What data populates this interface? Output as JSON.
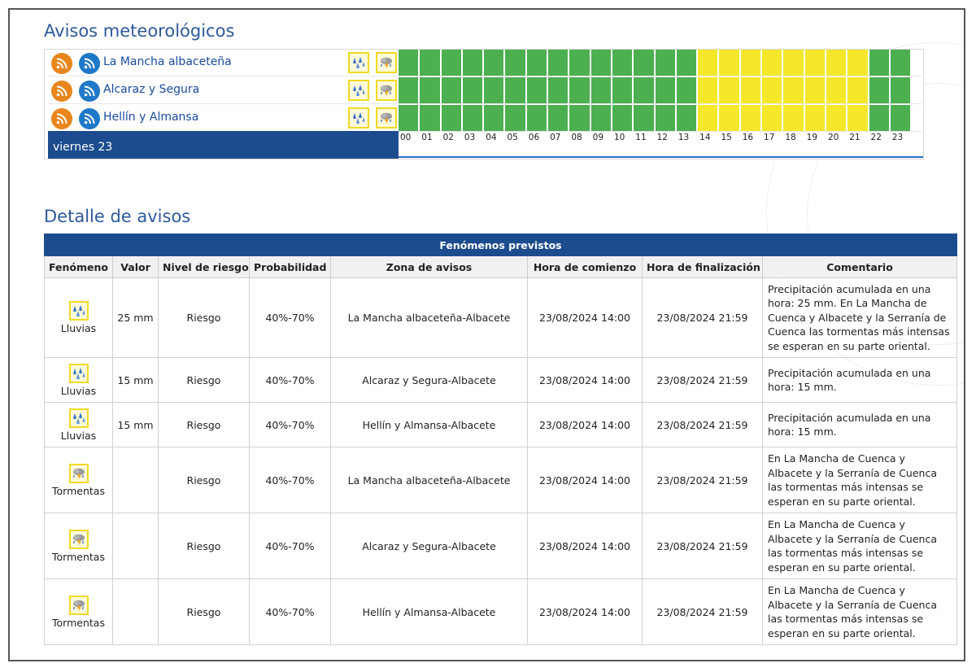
{
  "colors": {
    "green": "#4caf50",
    "yellow": "#f5e82a",
    "dark_blue": "#1d4c8e",
    "title_blue": "#2e5a9c",
    "rss_orange": "#e8861c",
    "rss_blue": "#1f78c8"
  },
  "warnings": {
    "title": "Avisos meteorológicos",
    "day_label": "viernes 23",
    "hour_labels": [
      "00",
      "01",
      "02",
      "03",
      "04",
      "05",
      "06",
      "07",
      "08",
      "09",
      "10",
      "11",
      "12",
      "13",
      "14",
      "15",
      "16",
      "17",
      "18",
      "19",
      "20",
      "21",
      "22",
      "23"
    ],
    "zones": [
      {
        "name": "La Mancha albaceteña",
        "icons": [
          "rain-icon",
          "storm-icon"
        ],
        "levels": [
          "green",
          "green",
          "green",
          "green",
          "green",
          "green",
          "green",
          "green",
          "green",
          "green",
          "green",
          "green",
          "green",
          "green",
          "yellow",
          "yellow",
          "yellow",
          "yellow",
          "yellow",
          "yellow",
          "yellow",
          "yellow",
          "green",
          "green"
        ]
      },
      {
        "name": "Alcaraz y Segura",
        "icons": [
          "rain-icon",
          "storm-icon"
        ],
        "levels": [
          "green",
          "green",
          "green",
          "green",
          "green",
          "green",
          "green",
          "green",
          "green",
          "green",
          "green",
          "green",
          "green",
          "green",
          "yellow",
          "yellow",
          "yellow",
          "yellow",
          "yellow",
          "yellow",
          "yellow",
          "yellow",
          "green",
          "green"
        ]
      },
      {
        "name": "Hellín y Almansa",
        "icons": [
          "rain-icon",
          "storm-icon"
        ],
        "levels": [
          "green",
          "green",
          "green",
          "green",
          "green",
          "green",
          "green",
          "green",
          "green",
          "green",
          "green",
          "green",
          "green",
          "green",
          "yellow",
          "yellow",
          "yellow",
          "yellow",
          "yellow",
          "yellow",
          "yellow",
          "yellow",
          "green",
          "green"
        ]
      }
    ]
  },
  "detail": {
    "title": "Detalle de avisos",
    "banner": "Fenómenos previstos",
    "headers": [
      "Fenómeno",
      "Valor",
      "Nivel de riesgo",
      "Probabilidad",
      "Zona de avisos",
      "Hora de comienzo",
      "Hora de finalización",
      "Comentario"
    ],
    "rows": [
      {
        "icon": "rain-icon",
        "phenomenon": "Lluvias",
        "value": "25 mm",
        "risk": "Riesgo",
        "probability": "40%-70%",
        "zone": "La Mancha albaceteña-Albacete",
        "start": "23/08/2024 14:00",
        "end": "23/08/2024 21:59",
        "comment": "Precipitación acumulada en una hora: 25 mm. En La Mancha de Cuenca y Albacete y la Serranía de Cuenca las tormentas más intensas se esperan en su parte oriental."
      },
      {
        "icon": "rain-icon",
        "phenomenon": "Lluvias",
        "value": "15 mm",
        "risk": "Riesgo",
        "probability": "40%-70%",
        "zone": "Alcaraz y Segura-Albacete",
        "start": "23/08/2024 14:00",
        "end": "23/08/2024 21:59",
        "comment": "Precipitación acumulada en una hora: 15 mm."
      },
      {
        "icon": "rain-icon",
        "phenomenon": "Lluvias",
        "value": "15 mm",
        "risk": "Riesgo",
        "probability": "40%-70%",
        "zone": "Hellín y Almansa-Albacete",
        "start": "23/08/2024 14:00",
        "end": "23/08/2024 21:59",
        "comment": "Precipitación acumulada en una hora: 15 mm."
      },
      {
        "icon": "storm-icon",
        "phenomenon": "Tormentas",
        "value": "",
        "risk": "Riesgo",
        "probability": "40%-70%",
        "zone": "La Mancha albaceteña-Albacete",
        "start": "23/08/2024 14:00",
        "end": "23/08/2024 21:59",
        "comment": "En La Mancha de Cuenca y Albacete y la Serranía de Cuenca las tormentas más intensas se esperan en su parte oriental."
      },
      {
        "icon": "storm-icon",
        "phenomenon": "Tormentas",
        "value": "",
        "risk": "Riesgo",
        "probability": "40%-70%",
        "zone": "Alcaraz y Segura-Albacete",
        "start": "23/08/2024 14:00",
        "end": "23/08/2024 21:59",
        "comment": "En La Mancha de Cuenca y Albacete y la Serranía de Cuenca las tormentas más intensas se esperan en su parte oriental."
      },
      {
        "icon": "storm-icon",
        "phenomenon": "Tormentas",
        "value": "",
        "risk": "Riesgo",
        "probability": "40%-70%",
        "zone": "Hellín y Almansa-Albacete",
        "start": "23/08/2024 14:00",
        "end": "23/08/2024 21:59",
        "comment": "En La Mancha de Cuenca y Albacete y la Serranía de Cuenca las tormentas más intensas se esperan en su parte oriental."
      }
    ]
  }
}
